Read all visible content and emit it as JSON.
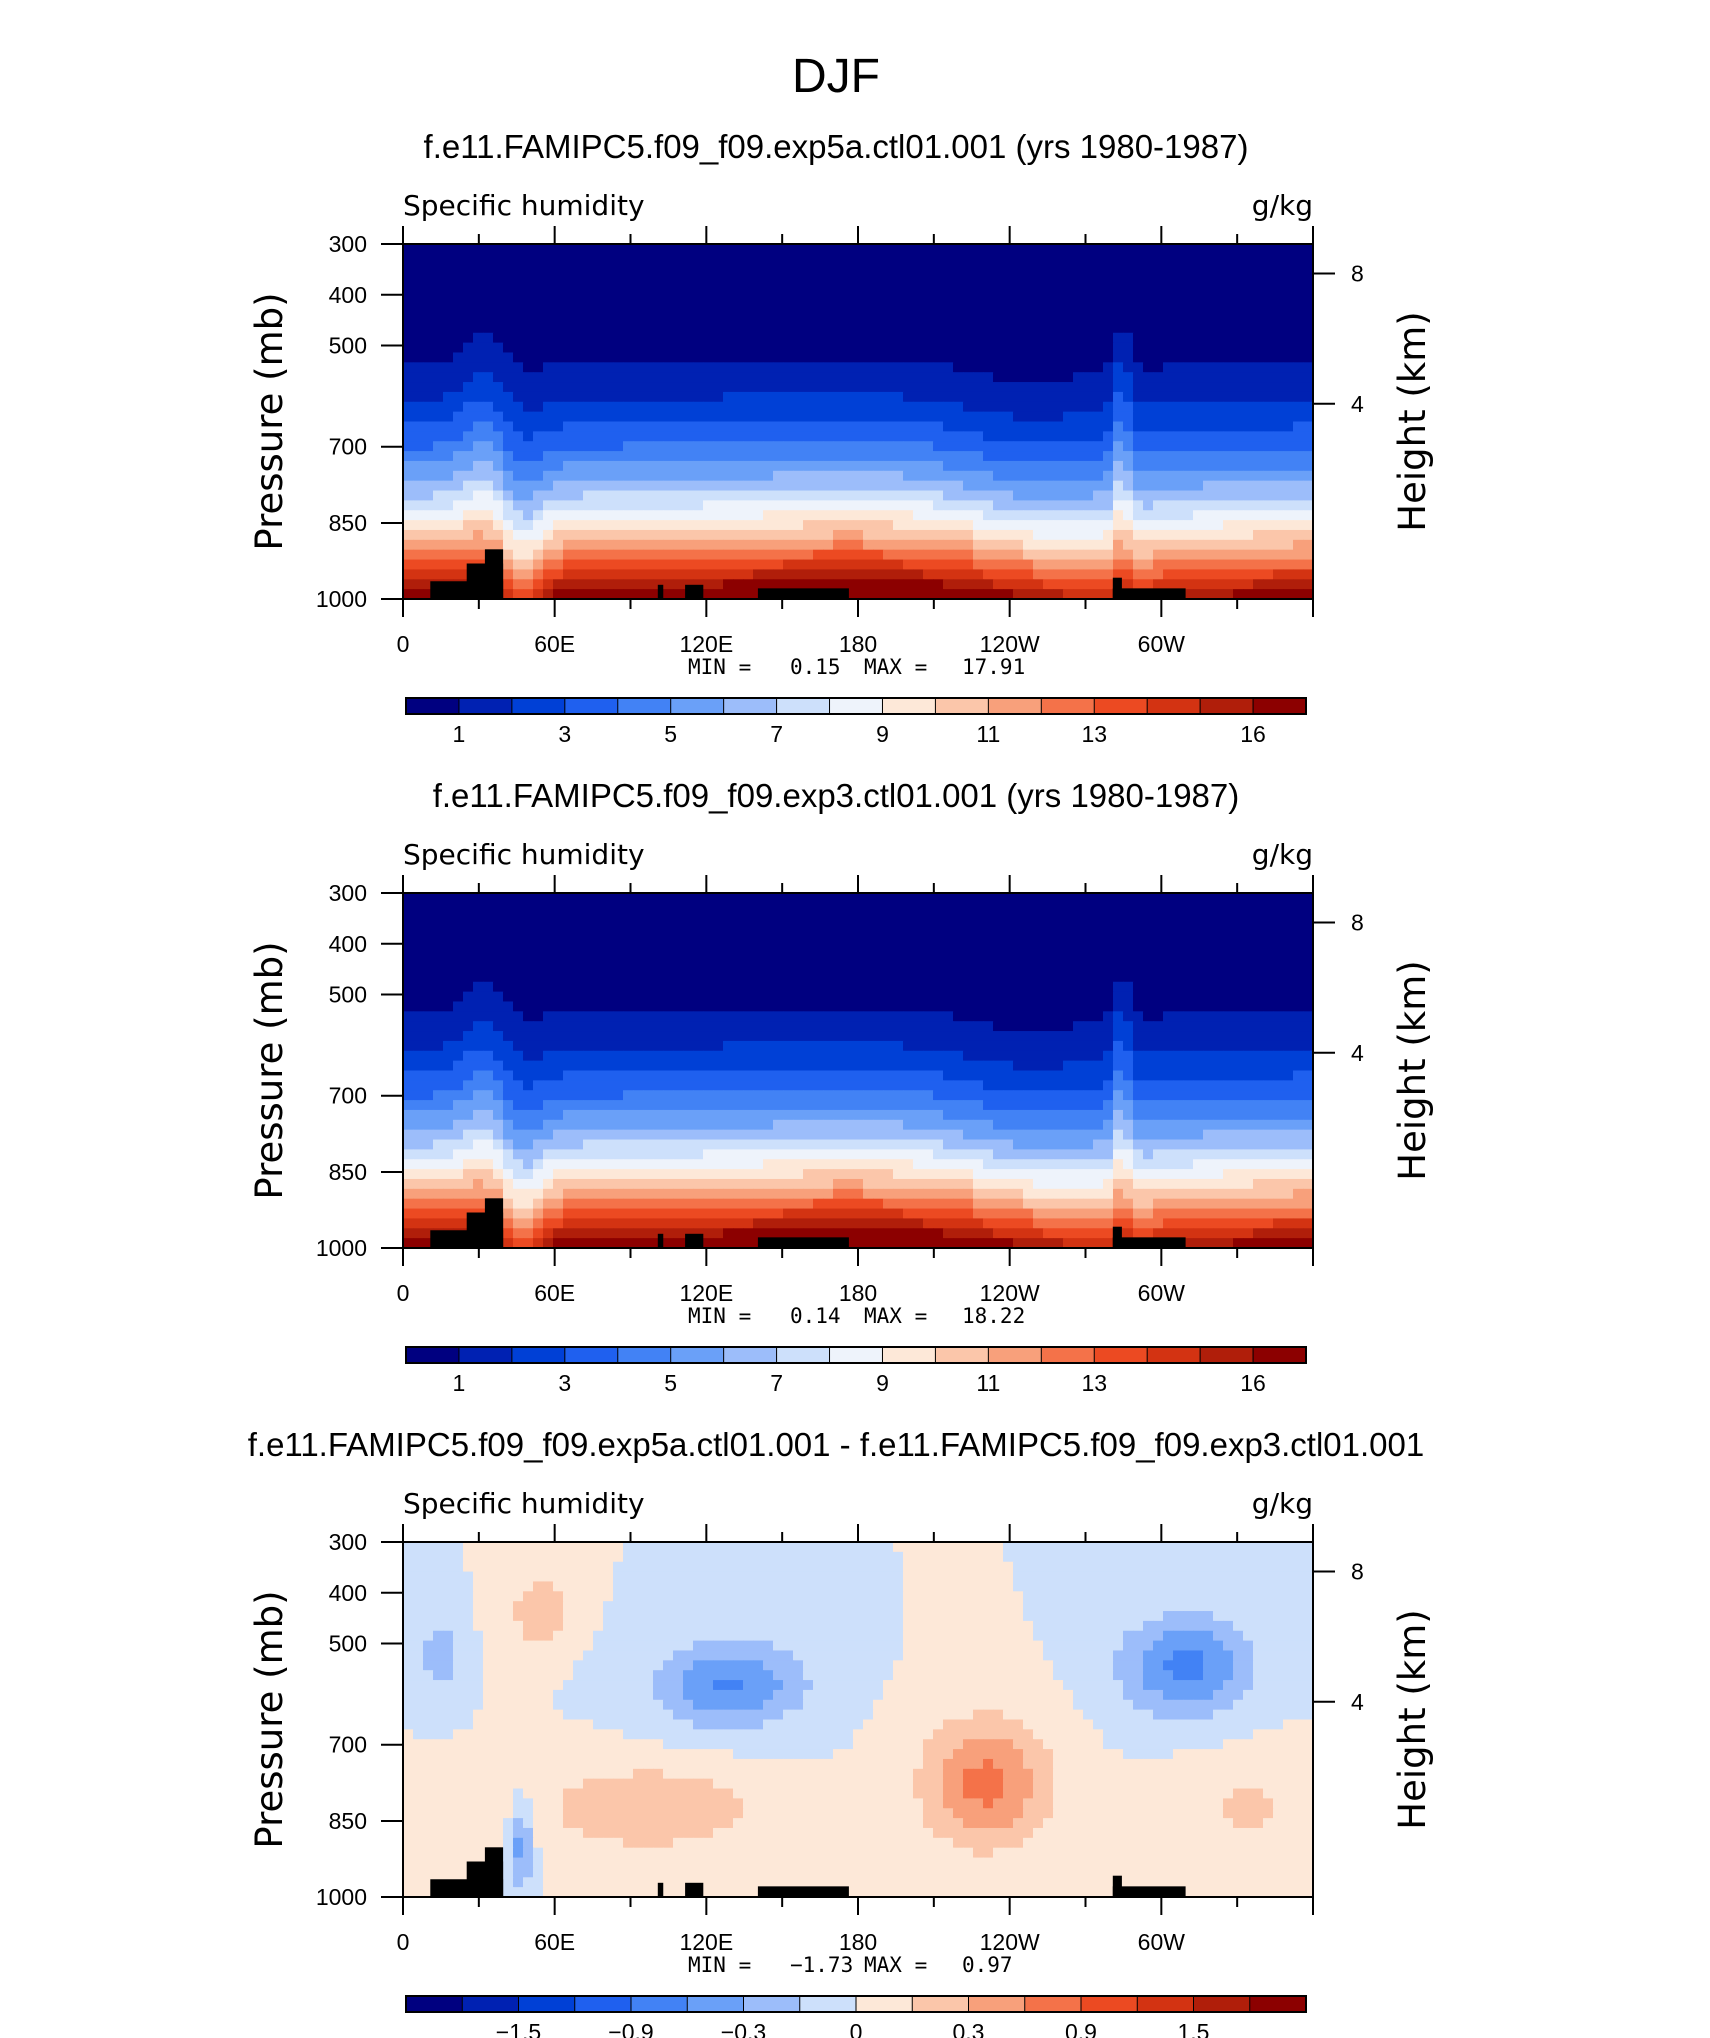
{
  "figure_title": "DJF",
  "chart_data": [
    {
      "type": "heatmap",
      "title": "f.e11.FAMIPC5.f09_f09.exp5a.ctl01.001 (yrs 1980-1987)",
      "variable_label": "Specific humidity",
      "units_label": "g/kg",
      "ylabel": "Pressure (mb)",
      "y2label": "Height (km)",
      "x_ticks": [
        "0",
        "60E",
        "120E",
        "180",
        "120W",
        "60W"
      ],
      "y_ticks": [
        "300",
        "400",
        "500",
        "700",
        "850",
        "1000"
      ],
      "y2_ticks": [
        "8",
        "4"
      ],
      "stats": {
        "min_label": "MIN =",
        "min": "0.15",
        "max_label": "MAX =",
        "max": "17.91"
      },
      "colorbar_labels": [
        "1",
        "3",
        "5",
        "7",
        "9",
        "11",
        "13",
        "16"
      ],
      "palette": [
        "#000080",
        "#0021b2",
        "#0040d6",
        "#1f60ef",
        "#4282f5",
        "#6aa0f8",
        "#9cbdfa",
        "#cde0fb",
        "#eef3fb",
        "#fde8d8",
        "#fbc6aa",
        "#f8a07b",
        "#f47249",
        "#ec4a22",
        "#d33312",
        "#b01e0a",
        "#8c0000"
      ],
      "level_min": 0,
      "level_max": 17
    },
    {
      "type": "heatmap",
      "title": "f.e11.FAMIPC5.f09_f09.exp3.ctl01.001 (yrs 1980-1987)",
      "variable_label": "Specific humidity",
      "units_label": "g/kg",
      "ylabel": "Pressure (mb)",
      "y2label": "Height (km)",
      "x_ticks": [
        "0",
        "60E",
        "120E",
        "180",
        "120W",
        "60W"
      ],
      "y_ticks": [
        "300",
        "400",
        "500",
        "700",
        "850",
        "1000"
      ],
      "y2_ticks": [
        "8",
        "4"
      ],
      "stats": {
        "min_label": "MIN =",
        "min": "0.14",
        "max_label": "MAX =",
        "max": "18.22"
      },
      "colorbar_labels": [
        "1",
        "3",
        "5",
        "7",
        "9",
        "11",
        "13",
        "16"
      ],
      "palette": [
        "#000080",
        "#0021b2",
        "#0040d6",
        "#1f60ef",
        "#4282f5",
        "#6aa0f8",
        "#9cbdfa",
        "#cde0fb",
        "#eef3fb",
        "#fde8d8",
        "#fbc6aa",
        "#f8a07b",
        "#f47249",
        "#ec4a22",
        "#d33312",
        "#b01e0a",
        "#8c0000"
      ],
      "level_min": 0,
      "level_max": 17
    },
    {
      "type": "heatmap",
      "title": "f.e11.FAMIPC5.f09_f09.exp5a.ctl01.001 - f.e11.FAMIPC5.f09_f09.exp3.ctl01.001",
      "variable_label": "Specific humidity",
      "units_label": "g/kg",
      "ylabel": "Pressure (mb)",
      "y2label": "Height (km)",
      "x_ticks": [
        "0",
        "60E",
        "120E",
        "180",
        "120W",
        "60W"
      ],
      "y_ticks": [
        "300",
        "400",
        "500",
        "700",
        "850",
        "1000"
      ],
      "y2_ticks": [
        "8",
        "4"
      ],
      "stats": {
        "min_label": "MIN =",
        "min": "−1.73",
        "max_label": "MAX =",
        "max": "0.97"
      },
      "colorbar_labels": [
        "−1.5",
        "−0.9",
        "−0.3",
        "0",
        "0.3",
        "0.9",
        "1.5"
      ],
      "palette": [
        "#000080",
        "#0021b2",
        "#0040d6",
        "#1f60ef",
        "#4282f5",
        "#6aa0f8",
        "#9cbdfa",
        "#cde0fb",
        "#fde8d8",
        "#fbc6aa",
        "#f8a07b",
        "#f47249",
        "#ec4a22",
        "#d33312",
        "#b01e0a",
        "#8c0000"
      ],
      "level_min": -1.8,
      "level_max": 1.8
    }
  ]
}
